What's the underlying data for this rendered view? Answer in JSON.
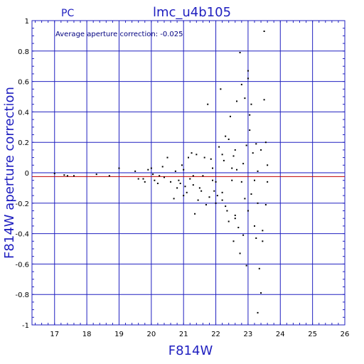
{
  "chart_data": {
    "type": "scatter",
    "title": "lmc_u4b105",
    "corner_label": "PC",
    "annotation": "Average aperture correction: -0.025",
    "xlabel": "F814W",
    "ylabel": "F814W aperture correction",
    "xlim": [
      16.3,
      26.0
    ],
    "ylim": [
      -1.0,
      1.0
    ],
    "xticks": [
      17,
      18,
      19,
      20,
      21,
      22,
      23,
      24,
      25,
      26
    ],
    "yticks": [
      -1,
      -0.8,
      -0.6,
      -0.4,
      -0.2,
      0,
      0.2,
      0.4,
      0.6,
      0.8,
      1
    ],
    "ytick_labels": [
      "-1",
      "-0.8",
      "-0.6",
      "-0.4",
      "-0.2",
      "0",
      "0.2",
      "0.4",
      "0.6",
      "0.8",
      "1"
    ],
    "grid": true,
    "reference_lines": [
      {
        "y": 0,
        "color": "#1010c0"
      },
      {
        "y": -0.025,
        "color": "#c00000"
      }
    ],
    "colors": {
      "axes": "#2020c0",
      "grid": "#2020c0",
      "points": "#000000",
      "mean_line": "#c00000"
    },
    "points": [
      [
        17.0,
        -0.005
      ],
      [
        17.3,
        -0.015
      ],
      [
        17.4,
        -0.02
      ],
      [
        17.6,
        -0.02
      ],
      [
        18.3,
        -0.01
      ],
      [
        18.7,
        -0.02
      ],
      [
        19.0,
        0.03
      ],
      [
        19.5,
        0.01
      ],
      [
        19.6,
        -0.04
      ],
      [
        19.75,
        -0.04
      ],
      [
        19.8,
        -0.06
      ],
      [
        19.9,
        0.02
      ],
      [
        20.0,
        0.03
      ],
      [
        20.05,
        -0.01
      ],
      [
        20.1,
        -0.05
      ],
      [
        20.2,
        -0.07
      ],
      [
        20.25,
        -0.02
      ],
      [
        20.35,
        0.04
      ],
      [
        20.4,
        -0.03
      ],
      [
        20.5,
        0.1
      ],
      [
        20.6,
        -0.06
      ],
      [
        20.7,
        -0.17
      ],
      [
        20.75,
        0.01
      ],
      [
        20.8,
        -0.1
      ],
      [
        20.85,
        -0.05
      ],
      [
        20.9,
        -0.07
      ],
      [
        20.95,
        0.05
      ],
      [
        21.0,
        0.02
      ],
      [
        21.0,
        -0.15
      ],
      [
        21.05,
        -0.09
      ],
      [
        21.1,
        -0.13
      ],
      [
        21.15,
        0.1
      ],
      [
        21.2,
        -0.04
      ],
      [
        21.25,
        0.13
      ],
      [
        21.3,
        -0.02
      ],
      [
        21.3,
        -0.08
      ],
      [
        21.35,
        -0.27
      ],
      [
        21.4,
        0.12
      ],
      [
        21.45,
        -0.18
      ],
      [
        21.5,
        -0.1
      ],
      [
        21.55,
        -0.12
      ],
      [
        21.6,
        -0.02
      ],
      [
        21.65,
        0.1
      ],
      [
        21.7,
        -0.21
      ],
      [
        21.75,
        0.45
      ],
      [
        21.8,
        -0.16
      ],
      [
        21.85,
        0.09
      ],
      [
        21.9,
        -0.05
      ],
      [
        21.95,
        -0.12
      ],
      [
        22.0,
        -0.2
      ],
      [
        22.05,
        -0.15
      ],
      [
        22.1,
        0.17
      ],
      [
        22.15,
        0.55
      ],
      [
        22.2,
        0.12
      ],
      [
        22.2,
        -0.13
      ],
      [
        22.25,
        0.08
      ],
      [
        22.3,
        0.24
      ],
      [
        22.35,
        -0.25
      ],
      [
        22.4,
        0.22
      ],
      [
        22.45,
        0.37
      ],
      [
        22.5,
        0.03
      ],
      [
        22.5,
        -0.05
      ],
      [
        22.55,
        0.11
      ],
      [
        22.6,
        0.15
      ],
      [
        22.6,
        -0.28
      ],
      [
        22.65,
        0.02
      ],
      [
        22.7,
        -0.36
      ],
      [
        22.75,
        0.79
      ],
      [
        22.8,
        -0.06
      ],
      [
        22.8,
        0.58
      ],
      [
        22.85,
        -0.41
      ],
      [
        22.9,
        0.49
      ],
      [
        22.9,
        -0.17
      ],
      [
        22.95,
        0.18
      ],
      [
        23.0,
        0.62
      ],
      [
        23.0,
        -0.25
      ],
      [
        23.0,
        0.67
      ],
      [
        23.05,
        0.28
      ],
      [
        23.1,
        -0.14
      ],
      [
        23.1,
        0.45
      ],
      [
        23.15,
        0.13
      ],
      [
        23.2,
        -0.05
      ],
      [
        23.25,
        0.19
      ],
      [
        23.3,
        0.01
      ],
      [
        23.3,
        -0.2
      ],
      [
        23.35,
        -0.63
      ],
      [
        23.4,
        -0.79
      ],
      [
        23.45,
        -0.45
      ],
      [
        23.5,
        0.48
      ],
      [
        23.5,
        0.93
      ],
      [
        23.55,
        0.2
      ],
      [
        23.55,
        -0.21
      ],
      [
        23.6,
        0.05
      ],
      [
        23.6,
        -0.06
      ],
      [
        23.3,
        -0.92
      ],
      [
        23.25,
        -0.43
      ],
      [
        22.95,
        -0.61
      ],
      [
        22.75,
        -0.53
      ],
      [
        22.6,
        -0.3
      ],
      [
        22.4,
        -0.32
      ],
      [
        22.3,
        -0.22
      ],
      [
        22.2,
        -0.18
      ],
      [
        22.0,
        -0.06
      ],
      [
        21.9,
        0.03
      ],
      [
        22.85,
        0.06
      ],
      [
        23.4,
        0.15
      ],
      [
        23.05,
        0.38
      ],
      [
        22.65,
        0.47
      ],
      [
        23.2,
        -0.35
      ],
      [
        23.45,
        -0.38
      ],
      [
        22.55,
        -0.45
      ]
    ]
  }
}
